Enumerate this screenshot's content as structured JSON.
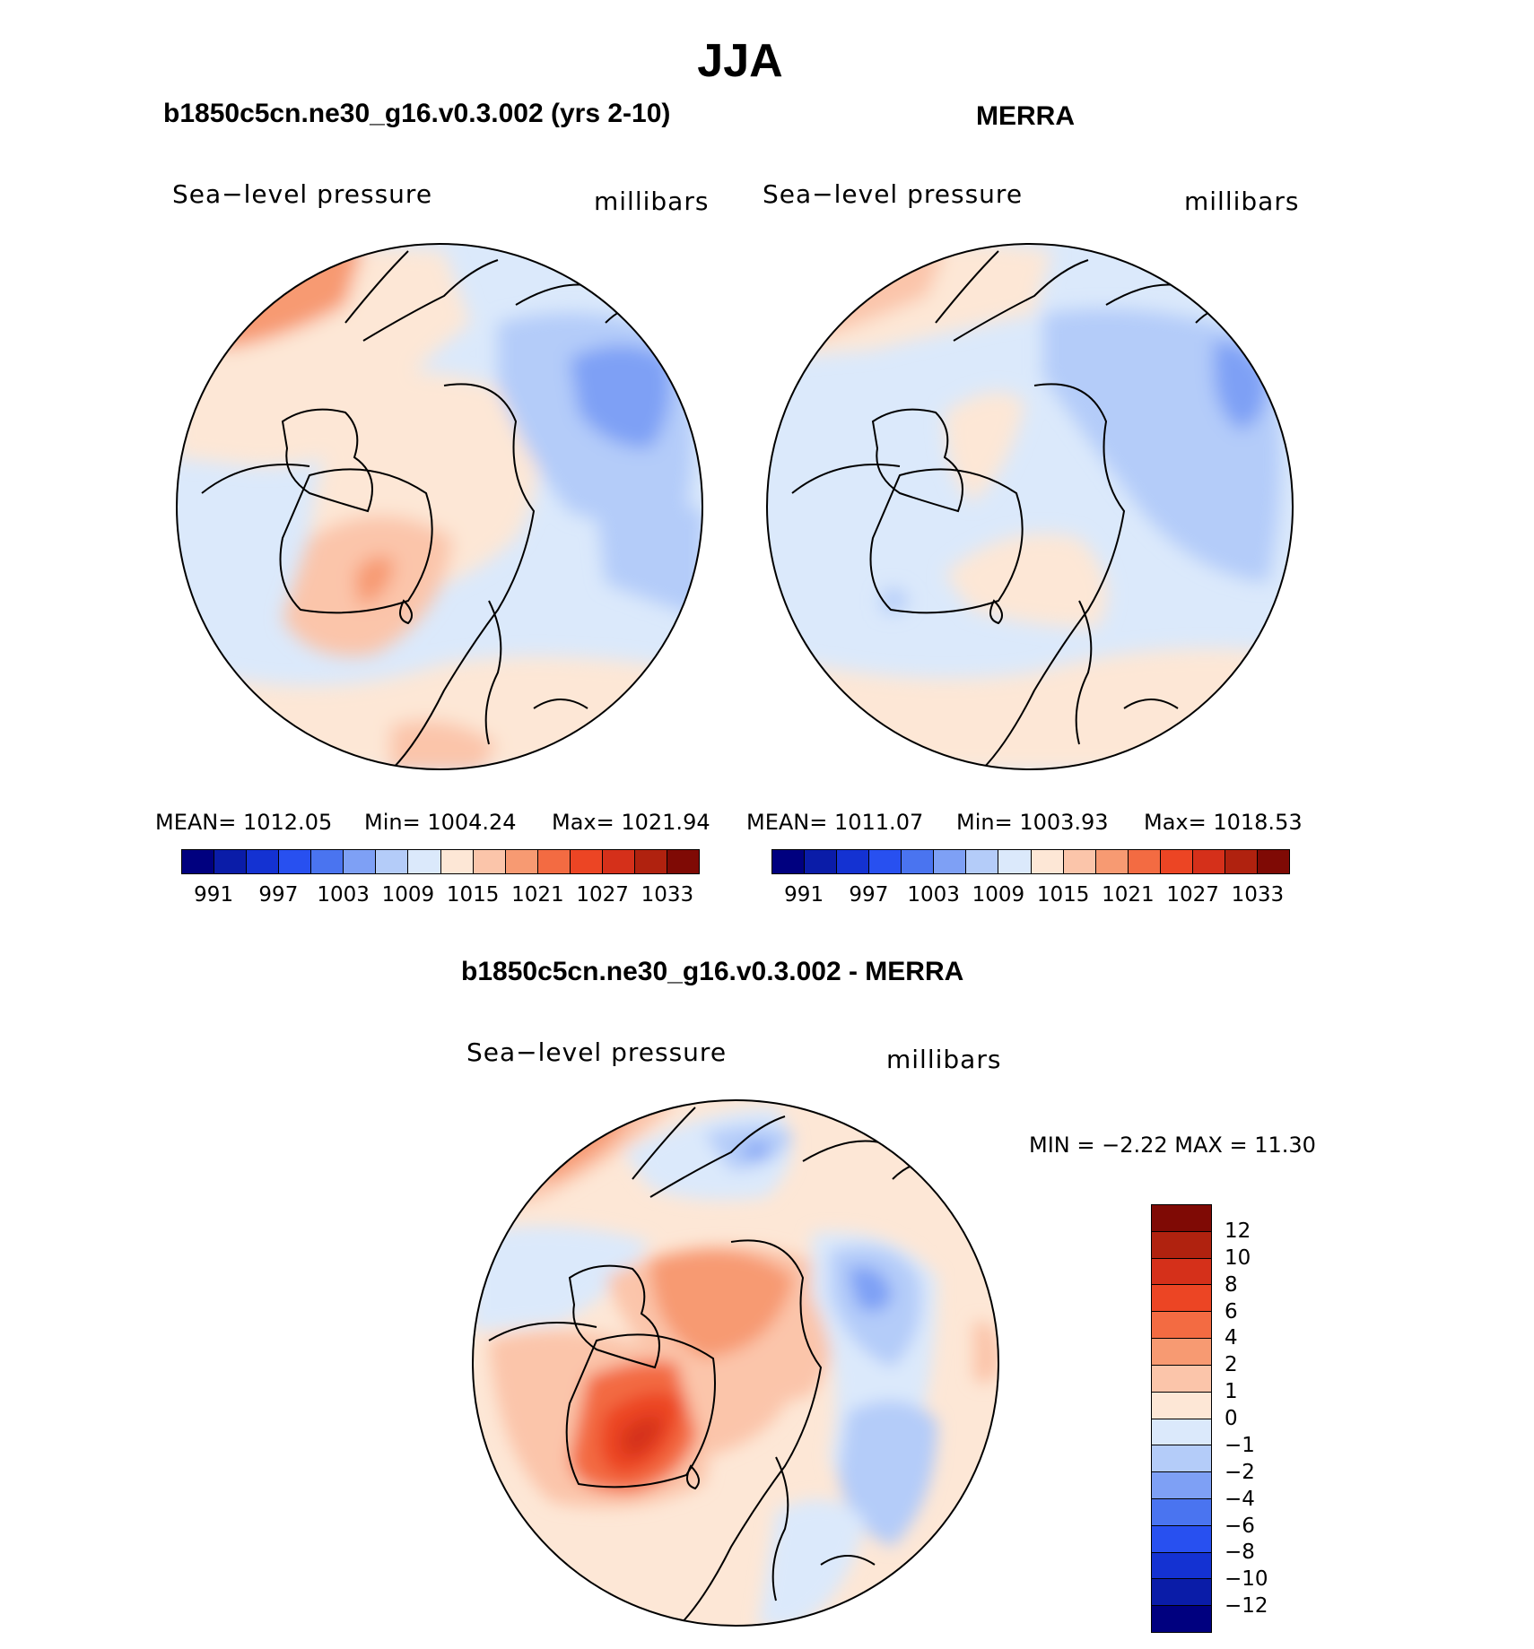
{
  "title": "JJA",
  "colors": {
    "abs_scale": [
      "#00007f",
      "#0a1ca8",
      "#1432d2",
      "#2850f0",
      "#4a74f0",
      "#7ea0f5",
      "#b4ccf9",
      "#dbe9fb",
      "#fde7d6",
      "#fbc5aa",
      "#f79a72",
      "#f36b42",
      "#ec4524",
      "#d5301a",
      "#b0220f",
      "#7f0a05"
    ],
    "diff_scale": [
      "#7f0a05",
      "#b0220f",
      "#d5301a",
      "#ec4524",
      "#f36b42",
      "#f79a72",
      "#fbc5aa",
      "#fde7d6",
      "#dbe9fb",
      "#b4ccf9",
      "#7ea0f5",
      "#4a74f0",
      "#2850f0",
      "#1432d2",
      "#0a1ca8",
      "#00007f"
    ]
  },
  "panels": [
    {
      "id": "model",
      "title": "b1850c5cn.ne30_g16.v0.3.002 (yrs 2-10)",
      "variable": "Sea−level pressure",
      "units": "millibars",
      "stats": {
        "mean": "MEAN=  1012.05",
        "min": "Min=  1004.24",
        "max": "Max=  1021.94"
      },
      "ticks": [
        "991",
        "997",
        "1003",
        "1009",
        "1015",
        "1021",
        "1027",
        "1033"
      ]
    },
    {
      "id": "obs",
      "title": "MERRA",
      "variable": "Sea−level pressure",
      "units": "millibars",
      "stats": {
        "mean": "MEAN=  1011.07",
        "min": "Min=  1003.93",
        "max": "Max=  1018.53"
      },
      "ticks": [
        "991",
        "997",
        "1003",
        "1009",
        "1015",
        "1021",
        "1027",
        "1033"
      ]
    },
    {
      "id": "diff",
      "title": "b1850c5cn.ne30_g16.v0.3.002 - MERRA",
      "variable": "Sea−level pressure",
      "units": "millibars",
      "stats": {
        "minmax": "MIN =   −2.22 MAX =   11.30"
      },
      "ticks": [
        "12",
        "10",
        "8",
        "6",
        "4",
        "2",
        "1",
        "0",
        "−1",
        "−2",
        "−4",
        "−6",
        "−8",
        "−10",
        "−12"
      ]
    }
  ]
}
